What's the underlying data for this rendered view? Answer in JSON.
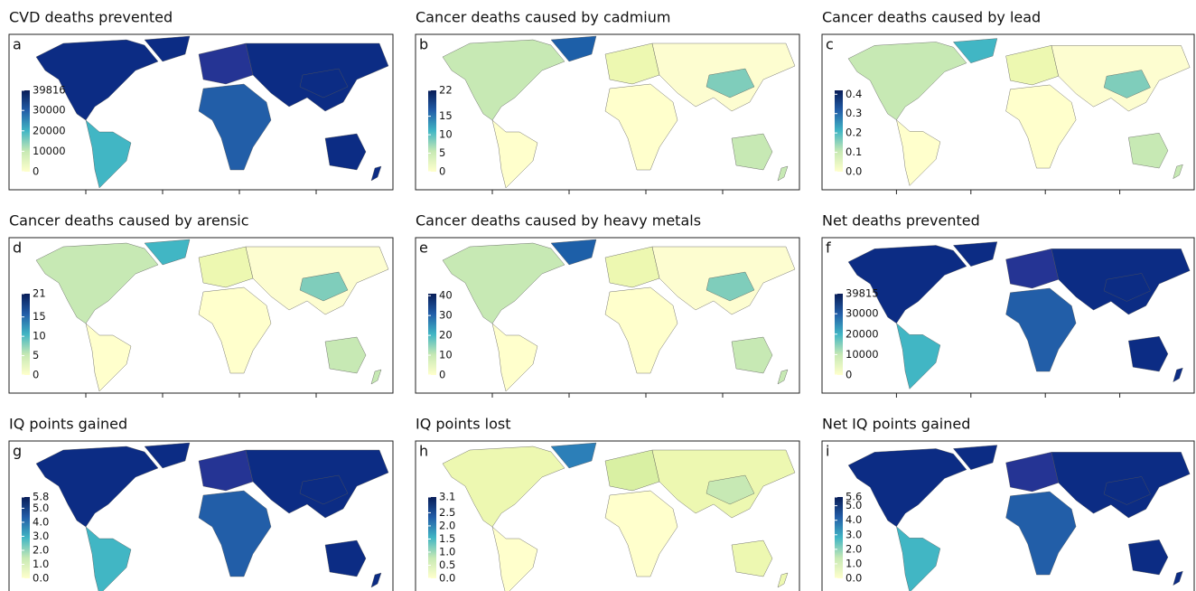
{
  "panels": [
    {
      "letter": "a",
      "title": "CVD deaths prevented",
      "colorbar": {
        "lim": [
          0,
          39816
        ],
        "ticks": [
          0,
          10000,
          20000,
          30000,
          39816
        ]
      }
    },
    {
      "letter": "b",
      "title": "Cancer deaths caused by cadmium",
      "colorbar": {
        "lim": [
          0,
          22
        ],
        "ticks": [
          0,
          5,
          10,
          15,
          22
        ]
      }
    },
    {
      "letter": "c",
      "title": "Cancer deaths caused by lead",
      "colorbar": {
        "lim": [
          0,
          0.42
        ],
        "ticks": [
          {
            "value": 0,
            "label": "0.0"
          },
          0.1,
          0.2,
          0.3,
          0.4
        ]
      }
    },
    {
      "letter": "d",
      "title": "Cancer deaths caused by arensic",
      "colorbar": {
        "lim": [
          0,
          21
        ],
        "ticks": [
          0,
          5,
          10,
          15,
          21
        ]
      }
    },
    {
      "letter": "e",
      "title": "Cancer deaths caused by heavy metals",
      "colorbar": {
        "lim": [
          0,
          41
        ],
        "ticks": [
          0,
          10,
          20,
          30,
          40
        ]
      }
    },
    {
      "letter": "f",
      "title": "Net deaths prevented",
      "colorbar": {
        "lim": [
          0,
          39815
        ],
        "ticks": [
          0,
          10000,
          20000,
          30000,
          39815
        ]
      }
    },
    {
      "letter": "g",
      "title": "IQ points gained",
      "colorbar": {
        "lim": [
          0,
          5.8
        ],
        "ticks": [
          {
            "value": 0,
            "label": "0.0"
          },
          {
            "value": 1,
            "label": "1.0"
          },
          {
            "value": 2,
            "label": "2.0"
          },
          {
            "value": 3,
            "label": "3.0"
          },
          {
            "value": 4,
            "label": "4.0"
          },
          {
            "value": 5,
            "label": "5.0"
          },
          5.8
        ]
      }
    },
    {
      "letter": "h",
      "title": "IQ points lost",
      "colorbar": {
        "lim": [
          0,
          3.1
        ],
        "ticks": [
          {
            "value": 0,
            "label": "0.0"
          },
          0.5,
          {
            "value": 1,
            "label": "1.0"
          },
          1.5,
          {
            "value": 2,
            "label": "2.0"
          },
          2.5,
          3.1
        ]
      }
    },
    {
      "letter": "i",
      "title": "Net IQ points gained",
      "colorbar": {
        "lim": [
          0,
          5.6
        ],
        "ticks": [
          {
            "value": 0,
            "label": "0.0"
          },
          {
            "value": 1,
            "label": "1.0"
          },
          {
            "value": 2,
            "label": "2.0"
          },
          {
            "value": 3,
            "label": "3.0"
          },
          {
            "value": 4,
            "label": "4.0"
          },
          {
            "value": 5,
            "label": "5.0"
          },
          5.6
        ]
      }
    }
  ]
}
